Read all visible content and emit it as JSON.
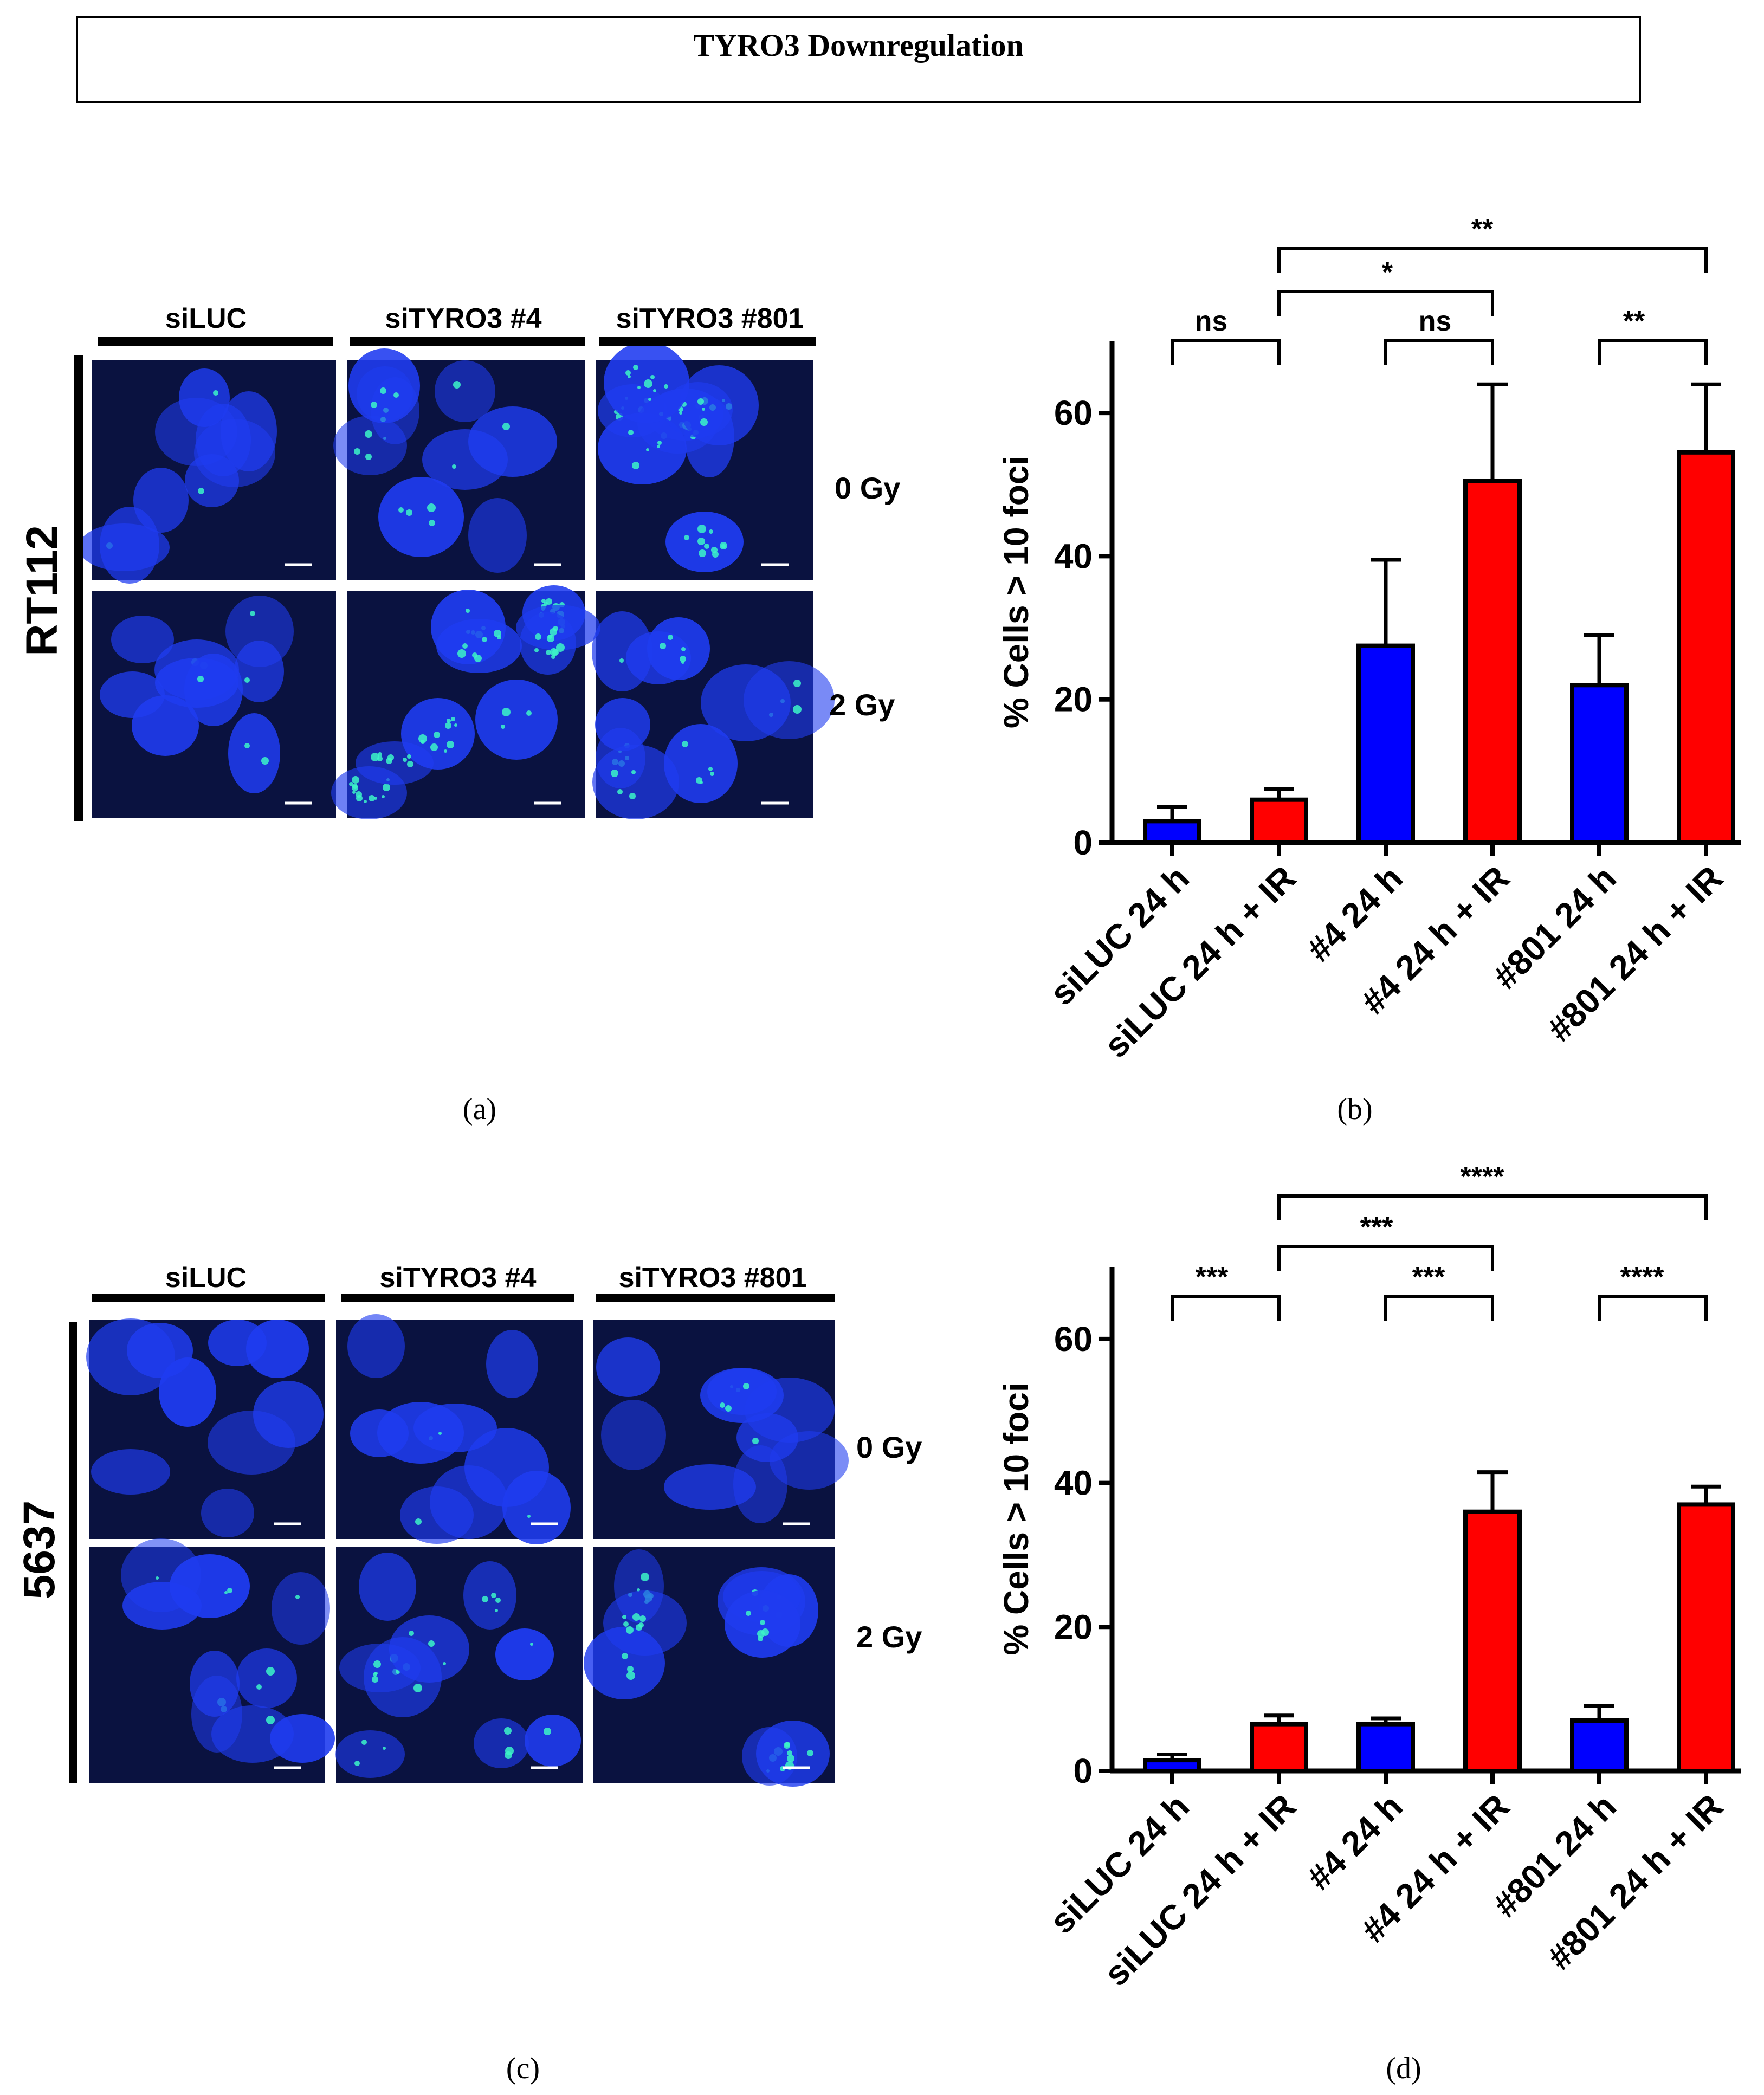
{
  "figure": {
    "title": "TYRO3 Downregulation"
  },
  "panels": {
    "a": {
      "caption": "(a)",
      "row_label": "RT112",
      "column_labels": [
        "siLUC",
        "siTYRO3 #4",
        "siTYRO3 #801"
      ],
      "dose_labels": [
        "0 Gy",
        "2 Gy"
      ]
    },
    "c": {
      "caption": "(c)",
      "row_label": "5637",
      "column_labels": [
        "siLUC",
        "siTYRO3 #4",
        "siTYRO3 #801"
      ],
      "dose_labels": [
        "0 Gy",
        "2 Gy"
      ]
    }
  },
  "colors": {
    "no_ir_bar": "#0000ff",
    "ir_bar": "#ff0000",
    "micrograph_background": "#0a1240",
    "nucleus": "#1f3cf0",
    "foci": "#3cf5c8"
  },
  "chart_data": [
    {
      "panel": "b",
      "caption": "(b)",
      "type": "bar",
      "categories": [
        "siLUC 24 h",
        "siLUC 24 h + IR",
        "#4 24 h",
        "#4 24 h + IR",
        "#801 24 h",
        "#801 24 h + IR"
      ],
      "values": [
        3,
        6,
        27.5,
        50.5,
        22,
        54.5
      ],
      "errors": [
        2,
        1.5,
        12,
        13.5,
        7,
        9.5
      ],
      "bar_colors": [
        "#0000ff",
        "#ff0000",
        "#0000ff",
        "#ff0000",
        "#0000ff",
        "#ff0000"
      ],
      "ylabel": "% Cells > 10 foci",
      "ylim": [
        0,
        70
      ],
      "yticks": [
        0,
        20,
        40,
        60
      ],
      "significance": [
        {
          "from": 0,
          "to": 1,
          "label": "ns"
        },
        {
          "from": 2,
          "to": 3,
          "label": "ns"
        },
        {
          "from": 4,
          "to": 5,
          "label": "**"
        },
        {
          "from": 1,
          "to": 3,
          "label": "*"
        },
        {
          "from": 1,
          "to": 5,
          "label": "**"
        }
      ]
    },
    {
      "panel": "d",
      "caption": "(d)",
      "type": "bar",
      "categories": [
        "siLUC 24 h",
        "siLUC 24 h + IR",
        "#4 24 h",
        "#4 24 h + IR",
        "#801 24 h",
        "#801 24 h + IR"
      ],
      "values": [
        1.5,
        6.5,
        6.5,
        36,
        7,
        37
      ],
      "errors": [
        0.8,
        1.2,
        0.8,
        5.5,
        2,
        2.5
      ],
      "bar_colors": [
        "#0000ff",
        "#ff0000",
        "#0000ff",
        "#ff0000",
        "#0000ff",
        "#ff0000"
      ],
      "ylabel": "% Cells > 10 foci",
      "ylim": [
        0,
        70
      ],
      "yticks": [
        0,
        20,
        40,
        60
      ],
      "significance": [
        {
          "from": 0,
          "to": 1,
          "label": "***"
        },
        {
          "from": 2,
          "to": 3,
          "label": "***"
        },
        {
          "from": 4,
          "to": 5,
          "label": "****"
        },
        {
          "from": 1,
          "to": 3,
          "label": "***"
        },
        {
          "from": 1,
          "to": 5,
          "label": "****"
        }
      ]
    }
  ]
}
